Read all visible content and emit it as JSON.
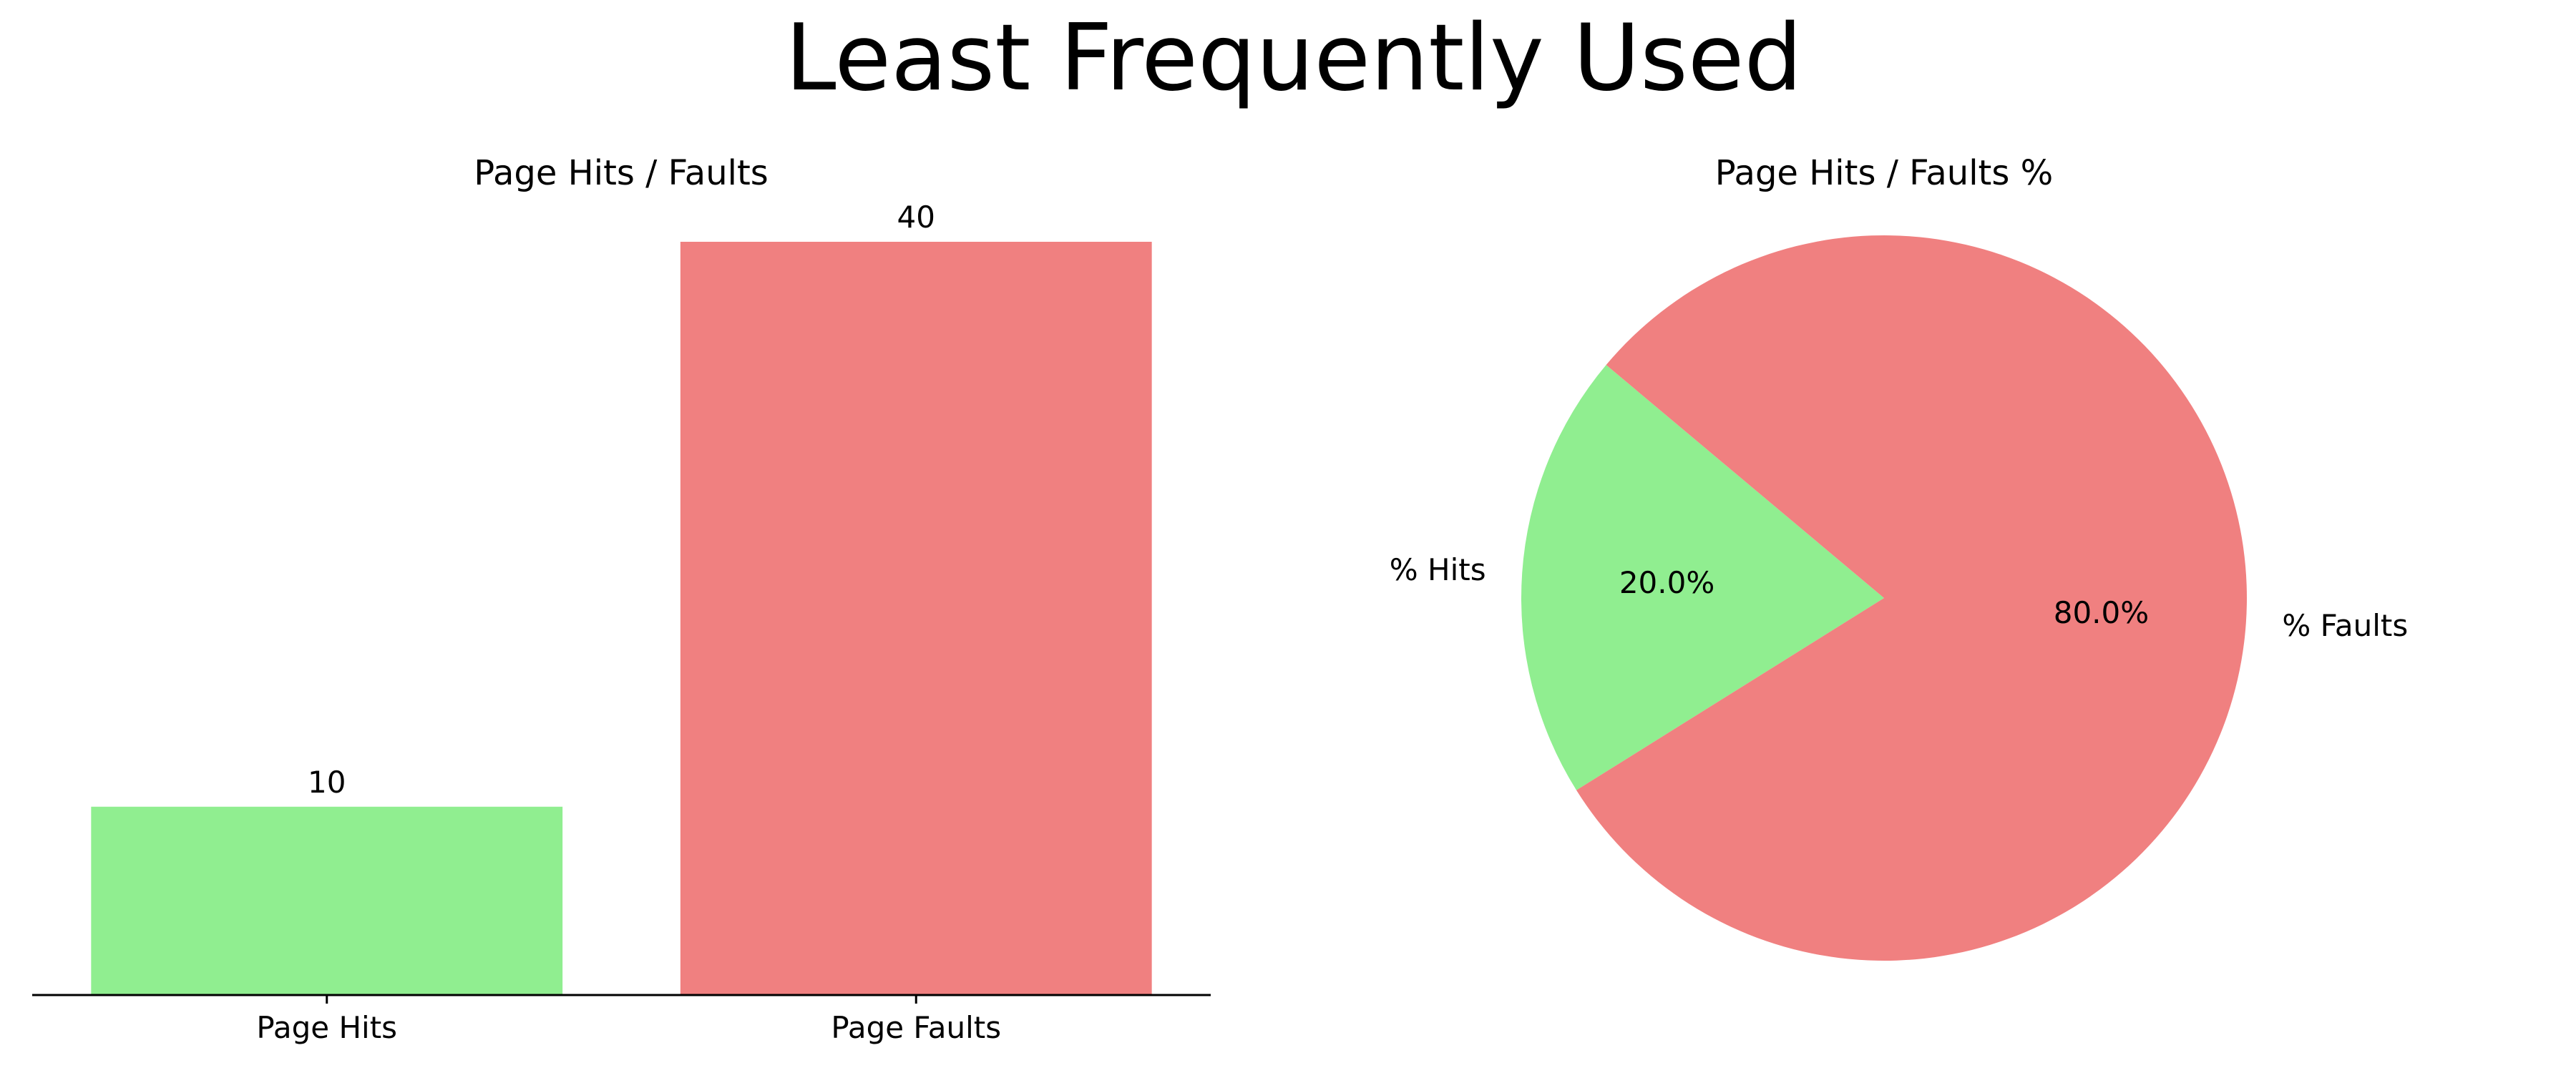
{
  "figure": {
    "title": "Least Frequently Used"
  },
  "chart_data": [
    {
      "type": "bar",
      "title": "Page Hits / Faults",
      "categories": [
        "Page Hits",
        "Page Faults"
      ],
      "values": [
        10,
        40
      ],
      "data_labels": [
        "10",
        "40"
      ],
      "colors": [
        "#90ee90",
        "#f08080"
      ],
      "xlabel": "",
      "ylabel": "",
      "ylim": [
        0,
        40
      ],
      "grid": false,
      "legend": "none",
      "spines": "bottom-only",
      "y_axis_visible": false
    },
    {
      "type": "pie",
      "title": "Page Hits / Faults %",
      "labels": [
        "% Hits",
        "% Faults"
      ],
      "values": [
        20.0,
        80.0
      ],
      "pct_labels": [
        "20.0%",
        "80.0%"
      ],
      "colors": [
        "#90ee90",
        "#f08080"
      ],
      "start_angle_deg": 140,
      "direction": "counterclockwise",
      "legend": "none"
    }
  ]
}
